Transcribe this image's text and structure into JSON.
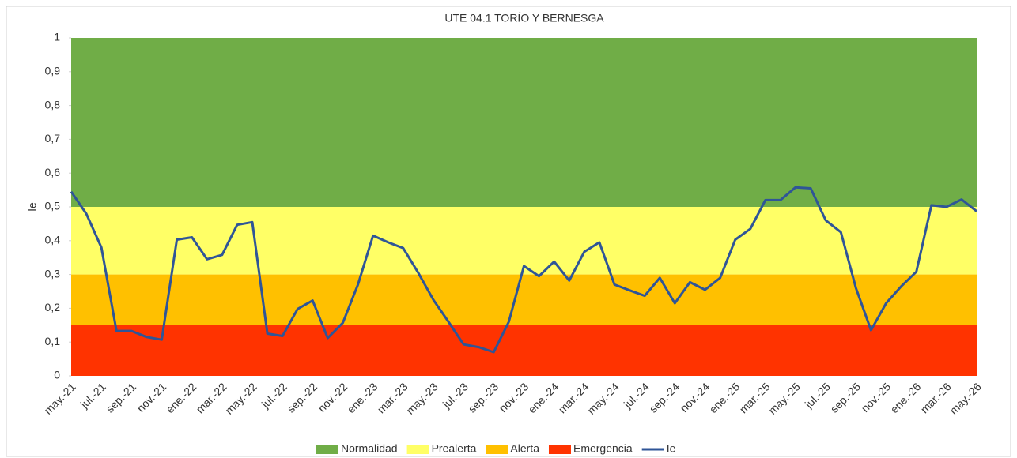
{
  "chart_data": {
    "type": "line",
    "title": "UTE 04.1 TORÍO Y BERNESGA",
    "y_label": "Ie",
    "categories": [
      "may.-21",
      null,
      "jul.-21",
      null,
      "sep.-21",
      null,
      "nov.-21",
      null,
      "ene.-22",
      null,
      "mar.-22",
      null,
      "may.-22",
      null,
      "jul.-22",
      null,
      "sep.-22",
      null,
      "nov.-22",
      null,
      "ene.-23",
      null,
      "mar.-23",
      null,
      "may.-23",
      null,
      "jul.-23",
      null,
      "sep.-23",
      null,
      "nov.-23",
      null,
      "ene.-24",
      null,
      "mar.-24",
      null,
      "may.-24",
      null,
      "jul.-24",
      null,
      "sep.-24",
      null,
      "nov.-24",
      null,
      "ene.-25",
      null,
      "mar.-25",
      null,
      "may.-25",
      null,
      "jul.-25",
      null,
      "sep.-25",
      null,
      "nov.-25",
      null,
      "ene.-26",
      null,
      "mar.-26",
      null,
      "may.-26"
    ],
    "bands": [
      {
        "name": "Normalidad",
        "color": "#70ad47",
        "from": 0.5,
        "to": 1
      },
      {
        "name": "Prealerta",
        "color": "#ffff66",
        "from": 0.3,
        "to": 0.5
      },
      {
        "name": "Alerta",
        "color": "#ffc000",
        "from": 0.15,
        "to": 0.3
      },
      {
        "name": "Emergencia",
        "color": "#ff3300",
        "from": 0,
        "to": 0.15
      }
    ],
    "series": [
      {
        "name": "Ie",
        "color": "#2f5597",
        "values": [
          0.545,
          0.48,
          0.38,
          0.133,
          0.133,
          0.115,
          0.107,
          0.403,
          0.41,
          0.345,
          0.358,
          0.447,
          0.455,
          0.125,
          0.118,
          0.198,
          0.223,
          0.112,
          0.157,
          0.27,
          0.415,
          0.395,
          0.378,
          0.305,
          0.225,
          0.16,
          0.093,
          0.085,
          0.07,
          0.16,
          0.325,
          0.295,
          0.338,
          0.282,
          0.367,
          0.395,
          0.27,
          0.253,
          0.237,
          0.29,
          0.215,
          0.277,
          0.255,
          0.29,
          0.403,
          0.435,
          0.52,
          0.52,
          0.558,
          0.555,
          0.46,
          0.425,
          0.26,
          0.135,
          0.215,
          0.265,
          0.308,
          0.505,
          0.5,
          0.522,
          0.487
        ]
      }
    ],
    "ylim": [
      0,
      1
    ],
    "yticks": [
      0,
      {
        "value": 0.1,
        "label": "0,1"
      },
      {
        "value": 0.2,
        "label": "0,2"
      },
      {
        "value": 0.3,
        "label": "0,3"
      },
      {
        "value": 0.4,
        "label": "0,4"
      },
      {
        "value": 0.5,
        "label": "0,5"
      },
      {
        "value": 0.6,
        "label": "0,6"
      },
      {
        "value": 0.7,
        "label": "0,7"
      },
      {
        "value": 0.8,
        "label": "0,8"
      },
      {
        "value": 0.9,
        "label": "0,9"
      },
      1
    ],
    "grid": false
  }
}
